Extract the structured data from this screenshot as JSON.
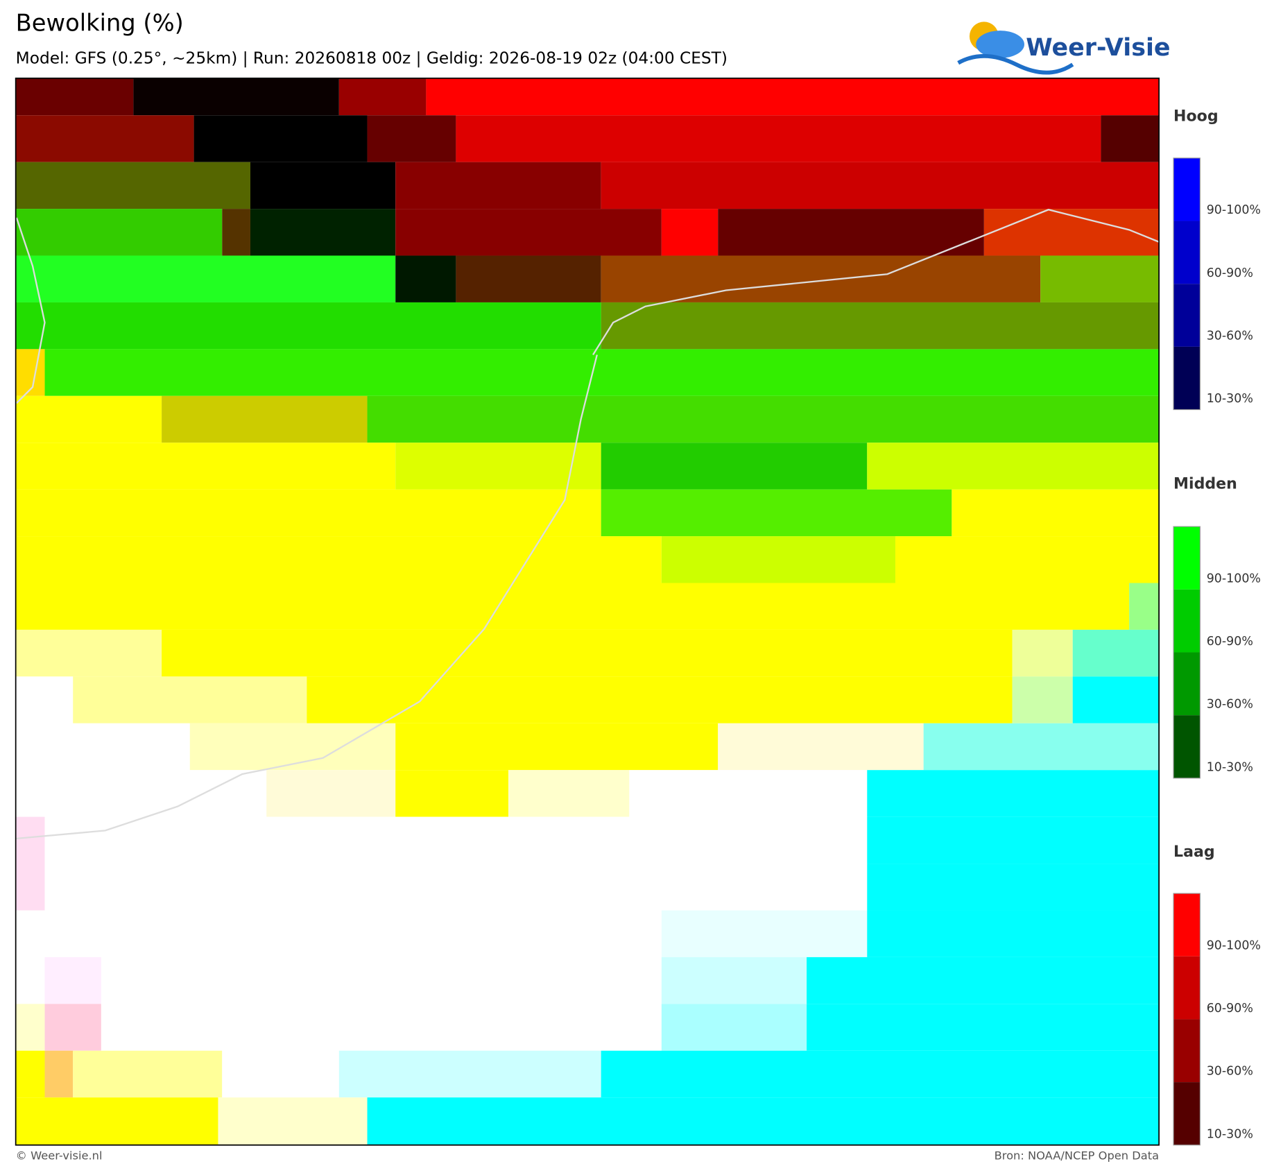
{
  "header": {
    "title": "Bewolking (%)",
    "subtitle": "Model: GFS (0.25°, ~25km)  |  Run: 20260818 00z  |  Geldig: 2026-08-19 02z (04:00 CEST)"
  },
  "logo": {
    "text": "Weer-Visie"
  },
  "legend": {
    "groups": [
      {
        "title": "Hoog",
        "labels": [
          "90-100%",
          "60-90%",
          "30-60%",
          "10-30%"
        ]
      },
      {
        "title": "Midden",
        "labels": [
          "90-100%",
          "60-90%",
          "30-60%",
          "10-30%"
        ]
      },
      {
        "title": "Laag",
        "labels": [
          "90-100%",
          "60-90%",
          "30-60%",
          "10-30%"
        ]
      }
    ]
  },
  "footer": {
    "left": "© Weer-visie.nl",
    "right": "Bron: NOAA/NCEP Open Data"
  }
}
